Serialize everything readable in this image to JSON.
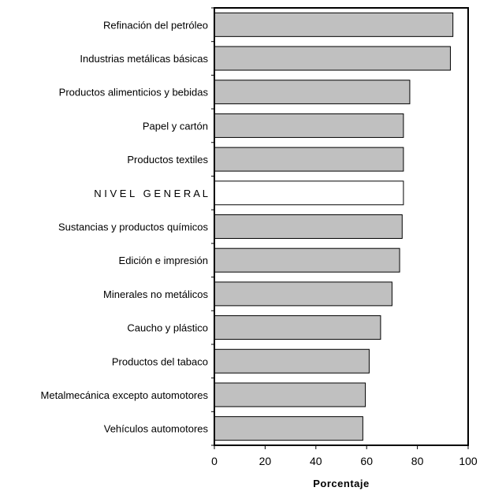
{
  "chart_data": {
    "type": "bar",
    "orientation": "horizontal",
    "categories": [
      "Refinación del petróleo",
      "Industrias metálicas básicas",
      "Productos alimenticios y bebidas",
      "Papel y cartón",
      "Productos textiles",
      "N I V E L   G E N E R A L",
      "Sustancias y productos químicos",
      "Edición e impresión",
      "Minerales no metálicos",
      "Caucho y plástico",
      "Productos del tabaco",
      "Metalmecánica excepto automotores",
      "Vehículos automotores"
    ],
    "values": [
      94,
      93,
      77,
      74.5,
      74.5,
      74.5,
      74,
      73,
      70,
      65.5,
      61,
      59.5,
      58.5
    ],
    "highlight_category": "N I V E L   G E N E R A L",
    "xlabel": "Porcentaje",
    "ylabel": "",
    "title": "",
    "xlim": [
      0,
      100
    ],
    "xticks": [
      "0",
      "20",
      "40",
      "60",
      "80",
      "100"
    ],
    "grid": false,
    "colors": {
      "bar_fill": "#c0c0c0",
      "highlight_fill": "#ffffff",
      "bar_stroke": "#000000"
    }
  }
}
